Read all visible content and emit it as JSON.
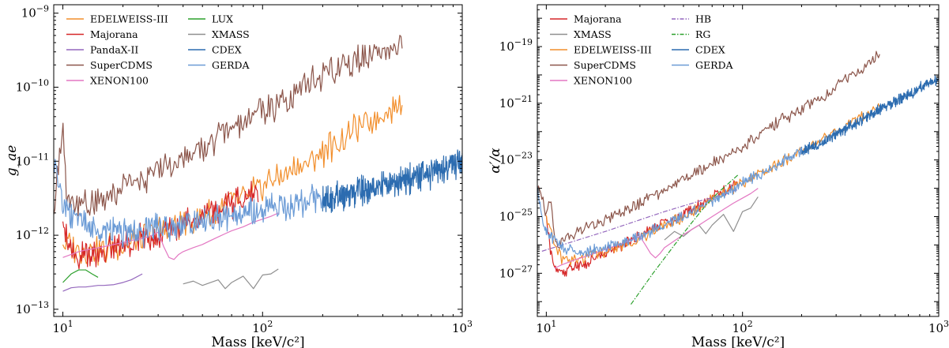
{
  "chart_data": [
    {
      "type": "line",
      "title": "",
      "xlabel": "Mass [keV/c²]",
      "ylabel": "g_ae",
      "xscale": "log",
      "yscale": "log",
      "xlim": [
        9,
        1000
      ],
      "ylim": [
        8e-14,
        1.3e-09
      ],
      "xticks": [
        {
          "v": 10,
          "b": "10",
          "e": "1"
        },
        {
          "v": 100,
          "b": "10",
          "e": "2"
        },
        {
          "v": 1000,
          "b": "10",
          "e": "3"
        }
      ],
      "yticks": [
        {
          "v": 1e-13,
          "b": "10",
          "e": "−13"
        },
        {
          "v": 1e-12,
          "b": "10",
          "e": "−12"
        },
        {
          "v": 1e-11,
          "b": "10",
          "e": "−11"
        },
        {
          "v": 1e-10,
          "b": "10",
          "e": "−10"
        },
        {
          "v": 1e-09,
          "b": "10",
          "e": "−9"
        }
      ],
      "legend_position": "top-left",
      "legend_columns": 2,
      "grid": false,
      "series": [
        {
          "name": "EDELWEISS-III",
          "color": "#f28e2b",
          "legend_col": 0,
          "x": [
            10,
            11,
            12,
            13,
            14,
            16,
            18,
            20,
            22,
            25,
            28,
            30,
            33,
            36,
            40,
            45,
            50,
            55,
            60,
            65,
            70,
            80,
            90,
            100,
            110,
            120,
            140,
            160,
            180,
            200,
            220,
            240,
            260,
            280,
            300,
            330,
            360,
            400,
            450,
            500
          ],
          "y": [
            8e-13,
            7e-13,
            6.5e-13,
            6e-13,
            6.2e-13,
            6.5e-13,
            7e-13,
            7.5e-13,
            8.5e-13,
            9e-13,
            1e-12,
            1.1e-12,
            1.2e-12,
            1.3e-12,
            1.45e-12,
            1.6e-12,
            1.8e-12,
            2e-12,
            2.2e-12,
            2.5e-12,
            2.8e-12,
            3.2e-12,
            4e-12,
            4.5e-12,
            5.5e-12,
            6e-12,
            7.5e-12,
            9e-12,
            1.1e-11,
            1.3e-11,
            1.6e-11,
            1.8e-11,
            2.1e-11,
            2.4e-11,
            2.8e-11,
            3.2e-11,
            3.7e-11,
            4.3e-11,
            5.2e-11,
            6.5e-11
          ]
        },
        {
          "name": "Majorana",
          "color": "#d62728",
          "legend_col": 0,
          "x": [
            10,
            10.5,
            11,
            11.5,
            12,
            13,
            14,
            15,
            17,
            19,
            21,
            24,
            27,
            30,
            34,
            38,
            42,
            47,
            52,
            58,
            64,
            70,
            78,
            86,
            95
          ],
          "y": [
            1.8e-12,
            1.1e-12,
            7e-13,
            5.5e-13,
            5e-13,
            5.5e-13,
            5.8e-13,
            6e-13,
            6.5e-13,
            7e-13,
            7.5e-13,
            8.5e-13,
            9.5e-13,
            1.05e-12,
            1.2e-12,
            1.35e-12,
            1.5e-12,
            1.7e-12,
            1.9e-12,
            2.1e-12,
            2.4e-12,
            2.7e-12,
            3e-12,
            3.4e-12,
            3.8e-12
          ]
        },
        {
          "name": "PandaX-II",
          "color": "#9467bd",
          "legend_col": 0,
          "x": [
            10,
            11,
            12,
            13,
            14,
            15,
            16,
            18,
            20,
            22,
            25
          ],
          "y": [
            1.75e-13,
            1.95e-13,
            2e-13,
            2e-13,
            2.05e-13,
            2.1e-13,
            2.1e-13,
            2.15e-13,
            2.3e-13,
            2.5e-13,
            3e-13
          ]
        },
        {
          "name": "SuperCDMS",
          "color": "#8c564b",
          "legend_col": 0,
          "x": [
            9,
            9.5,
            10,
            10.5,
            11,
            11.5,
            12,
            13,
            14,
            16,
            18,
            20,
            23,
            26,
            30,
            35,
            40,
            45,
            50,
            55,
            60,
            70,
            80,
            90,
            100,
            120,
            140,
            160,
            200,
            250,
            300,
            400,
            500
          ],
          "y": [
            2e-12,
            1e-11,
            2.5e-11,
            2.5e-12,
            3e-12,
            2.6e-12,
            2.5e-12,
            2.6e-12,
            2.8e-12,
            3.2e-12,
            3.8e-12,
            4.3e-12,
            5e-12,
            6e-12,
            7.5e-12,
            9e-12,
            1.1e-11,
            1.3e-11,
            1.55e-11,
            1.8e-11,
            2.1e-11,
            2.6e-11,
            3.2e-11,
            4e-11,
            4.5e-11,
            6e-11,
            8e-11,
            1.05e-10,
            1.45e-10,
            1.9e-10,
            2.3e-10,
            2.9e-10,
            3.4e-10
          ]
        },
        {
          "name": "XENON100",
          "color": "#e377c2",
          "legend_col": 0,
          "x": [
            10,
            11,
            12,
            13,
            14,
            16,
            18,
            20,
            22,
            25,
            28,
            30,
            32,
            34,
            36,
            38,
            40,
            45,
            50,
            55,
            60,
            65,
            70,
            80,
            90,
            100,
            110,
            120
          ],
          "y": [
            5e-13,
            5.5e-13,
            6e-13,
            6.3e-13,
            6.5e-13,
            7e-13,
            7.5e-13,
            8e-13,
            8.5e-13,
            9e-13,
            1e-12,
            1.1e-12,
            7e-13,
            5e-13,
            4.7e-13,
            5.5e-13,
            6e-13,
            6.8e-13,
            7.5e-13,
            8.5e-13,
            9.5e-13,
            1.05e-12,
            1.15e-12,
            1.3e-12,
            1.5e-12,
            1.65e-12,
            1.8e-12,
            2e-12
          ]
        },
        {
          "name": "LUX",
          "color": "#2ca02c",
          "legend_col": 1,
          "x": [
            10,
            11,
            12,
            13,
            14,
            15
          ],
          "y": [
            2.3e-13,
            3e-13,
            3.4e-13,
            3.4e-13,
            3e-13,
            2.7e-13
          ]
        },
        {
          "name": "XMASS",
          "color": "#8f8f8f",
          "legend_col": 1,
          "x": [
            40,
            45,
            50,
            55,
            60,
            65,
            70,
            80,
            90,
            100,
            110,
            120
          ],
          "y": [
            2.2e-13,
            2.4e-13,
            2.1e-13,
            2.3e-13,
            2.5e-13,
            1.9e-13,
            2.3e-13,
            2.8e-13,
            1.9e-13,
            2.9e-13,
            3e-13,
            3.5e-13
          ]
        },
        {
          "name": "CDEX",
          "color": "#2c6cb0",
          "legend_col": 1,
          "x": [
            200,
            250,
            300,
            350,
            400,
            500,
            600,
            700,
            800,
            900,
            1000
          ],
          "y": [
            3e-12,
            3.3e-12,
            3.8e-12,
            4.3e-12,
            4.7e-12,
            5.5e-12,
            6.3e-12,
            7e-12,
            8e-12,
            9e-12,
            1.05e-11
          ]
        },
        {
          "name": "GERDA",
          "color": "#6b9bd6",
          "legend_col": 1,
          "x": [
            9,
            9.5,
            10,
            12,
            15,
            20,
            25,
            30,
            40,
            50,
            60,
            70,
            80,
            100,
            120,
            150,
            180,
            200
          ],
          "y": [
            1.1e-11,
            5e-12,
            2.8e-12,
            1.5e-12,
            1.2e-12,
            1.05e-12,
            1.1e-12,
            1.2e-12,
            1.35e-12,
            1.55e-12,
            1.7e-12,
            1.8e-12,
            1.9e-12,
            2.2e-12,
            2.4e-12,
            2.7e-12,
            2.9e-12,
            3e-12
          ]
        }
      ]
    },
    {
      "type": "line",
      "title": "",
      "xlabel": "Mass [keV/c²]",
      "ylabel": "α′/α",
      "xscale": "log",
      "yscale": "log",
      "xlim": [
        9,
        1000
      ],
      "ylim": [
        3e-29,
        3e-18
      ],
      "xticks": [
        {
          "v": 10,
          "b": "10",
          "e": "1"
        },
        {
          "v": 100,
          "b": "10",
          "e": "2"
        },
        {
          "v": 1000,
          "b": "10",
          "e": "3"
        }
      ],
      "yticks": [
        {
          "v": 1e-27,
          "b": "10",
          "e": "−27"
        },
        {
          "v": 1e-25,
          "b": "10",
          "e": "−25"
        },
        {
          "v": 1e-23,
          "b": "10",
          "e": "−23"
        },
        {
          "v": 1e-21,
          "b": "10",
          "e": "−21"
        },
        {
          "v": 1e-19,
          "b": "10",
          "e": "−19"
        }
      ],
      "legend_position": "top-left",
      "legend_columns": 2,
      "grid": false,
      "series": [
        {
          "name": "Majorana",
          "color": "#d62728",
          "legend_col": 0,
          "dash": "",
          "x": [
            10,
            10.5,
            11,
            11.5,
            12,
            13,
            14,
            15,
            17,
            19,
            21,
            24,
            27,
            30,
            34,
            38,
            42,
            47,
            52,
            58,
            64,
            70,
            78,
            86,
            95
          ],
          "y": [
            1e-25,
            6e-27,
            1.5e-27,
            1e-27,
            1e-27,
            1.3e-27,
            1.7e-27,
            2e-27,
            3e-27,
            4.5e-27,
            6e-27,
            1e-26,
            1.5e-26,
            2.2e-26,
            3.5e-26,
            5e-26,
            7e-26,
            1e-25,
            1.5e-25,
            2.2e-25,
            3e-25,
            5e-25,
            7e-25,
            1e-24,
            1.5e-24
          ]
        },
        {
          "name": "XMASS",
          "color": "#8f8f8f",
          "legend_col": 0,
          "dash": "",
          "x": [
            40,
            45,
            50,
            55,
            60,
            65,
            70,
            80,
            90,
            100,
            110,
            120
          ],
          "y": [
            1.5e-26,
            3e-26,
            2e-26,
            3.5e-26,
            5e-26,
            2.5e-26,
            5e-26,
            1.2e-25,
            3e-26,
            1.5e-25,
            2e-25,
            5e-25
          ]
        },
        {
          "name": "EDELWEISS-III",
          "color": "#f28e2b",
          "legend_col": 0,
          "dash": "",
          "x": [
            10,
            11,
            12,
            14,
            16,
            20,
            25,
            30,
            35,
            40,
            50,
            60,
            70,
            80,
            100,
            120,
            150,
            200,
            250,
            300,
            400,
            500
          ],
          "y": [
            1e-25,
            1e-26,
            3e-27,
            3e-27,
            4e-27,
            6e-27,
            1e-26,
            1.8e-26,
            3e-26,
            5e-26,
            1e-25,
            2e-25,
            4e-25,
            7e-25,
            1.5e-24,
            3e-24,
            7e-24,
            2e-23,
            5e-23,
            1e-22,
            3e-22,
            8e-22
          ]
        },
        {
          "name": "SuperCDMS",
          "color": "#8c564b",
          "legend_col": 0,
          "dash": "",
          "x": [
            9,
            9.5,
            10,
            10.5,
            11,
            11.5,
            12,
            14,
            16,
            20,
            25,
            30,
            40,
            50,
            60,
            80,
            100,
            120,
            150,
            200,
            250,
            300,
            400,
            500
          ],
          "y": [
            1e-24,
            5e-25,
            1e-25,
            5e-25,
            2e-26,
            1e-26,
            1.5e-26,
            2.5e-26,
            4e-26,
            8e-26,
            1.5e-25,
            3e-25,
            8e-25,
            2e-24,
            4e-24,
            1.2e-23,
            3e-23,
            7e-23,
            2e-22,
            6e-22,
            1.5e-21,
            4e-21,
            1.5e-20,
            6e-20
          ]
        },
        {
          "name": "XENON100",
          "color": "#e377c2",
          "legend_col": 0,
          "dash": "",
          "x": [
            11,
            12,
            14,
            16,
            20,
            25,
            30,
            32,
            34,
            36,
            38,
            40,
            45,
            50,
            60,
            70,
            80,
            90,
            100,
            110,
            120
          ],
          "y": [
            1.5e-27,
            2e-27,
            3e-27,
            4e-27,
            7e-27,
            1.2e-26,
            2e-26,
            1e-26,
            5e-27,
            3.5e-27,
            5e-27,
            8e-27,
            1.4e-26,
            2.3e-26,
            5e-26,
            1e-25,
            1.8e-25,
            3e-25,
            4.5e-25,
            6.5e-25,
            1e-24
          ]
        },
        {
          "name": "HB",
          "color": "#9467bd",
          "legend_col": 1,
          "dash": "6,2,1.5,2",
          "x": [
            9.5,
            20,
            40,
            60,
            80,
            95
          ],
          "y": [
            6e-27,
            3e-26,
            1.5e-25,
            3.5e-25,
            6e-25,
            9e-25
          ]
        },
        {
          "name": "RG",
          "color": "#2ca02c",
          "legend_col": 1,
          "dash": "6,2,1.5,2",
          "x": [
            27,
            35,
            45,
            55,
            65,
            75,
            85,
            95
          ],
          "y": [
            8e-29,
            1e-27,
            1e-26,
            6e-26,
            2.5e-25,
            7e-25,
            1.5e-24,
            3e-24
          ]
        },
        {
          "name": "CDEX",
          "color": "#2c6cb0",
          "legend_col": 1,
          "dash": "",
          "x": [
            200,
            250,
            300,
            350,
            400,
            500,
            600,
            700,
            800,
            900,
            1000
          ],
          "y": [
            2e-23,
            4e-23,
            8e-23,
            1.5e-22,
            2.5e-22,
            6e-22,
            1.2e-21,
            2e-21,
            3.5e-21,
            5e-21,
            7e-21
          ]
        },
        {
          "name": "GERDA",
          "color": "#6b9bd6",
          "legend_col": 1,
          "dash": "",
          "x": [
            9,
            9.5,
            10,
            12,
            15,
            20,
            30,
            40,
            50,
            60,
            80,
            100,
            120,
            150,
            200
          ],
          "y": [
            1e-24,
            1e-25,
            3e-26,
            8e-27,
            5e-27,
            8e-27,
            2e-26,
            5e-26,
            1e-25,
            2e-25,
            6e-25,
            1.5e-24,
            3e-24,
            7e-24,
            2e-23
          ]
        }
      ]
    }
  ]
}
